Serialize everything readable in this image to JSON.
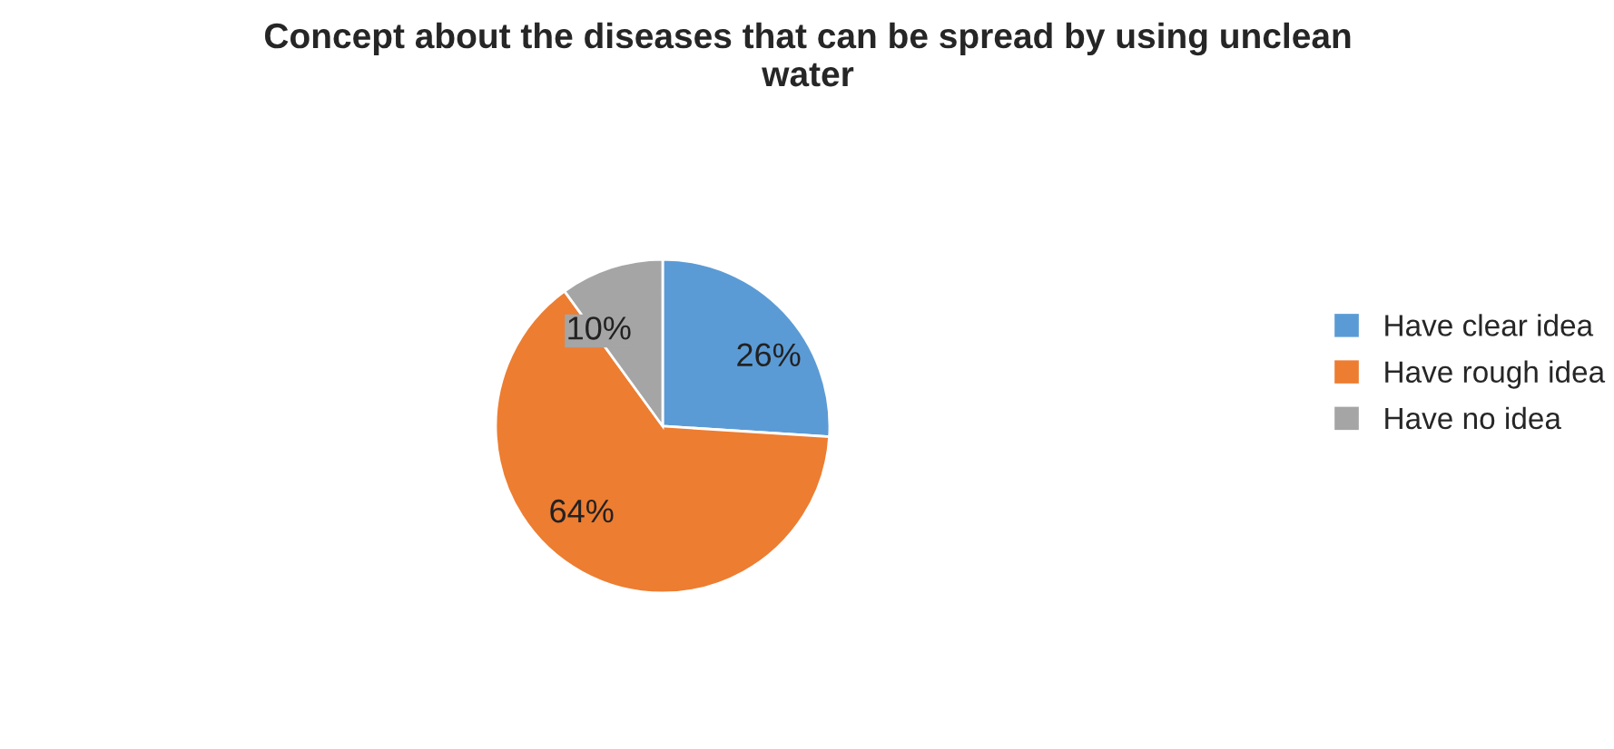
{
  "chart_data": {
    "type": "pie",
    "title": "Concept about the diseases that can be spread by using unclean water",
    "categories": [
      "Have clear idea",
      "Have rough idea",
      "Have no idea"
    ],
    "values": [
      26,
      64,
      10
    ],
    "colors": [
      "#5b9bd5",
      "#ed7d31",
      "#a5a5a5"
    ],
    "value_labels": [
      "26%",
      "64%",
      "10%"
    ],
    "legend": "right"
  }
}
